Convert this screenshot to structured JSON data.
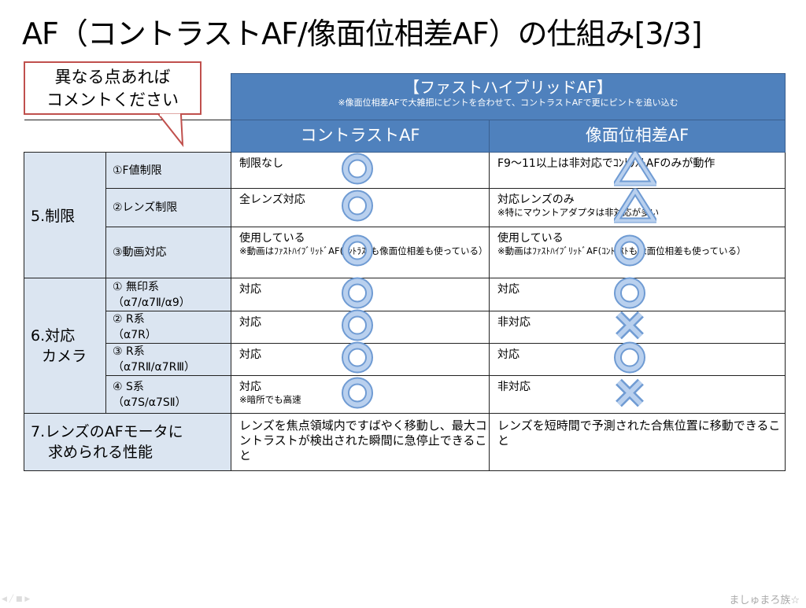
{
  "title": "AF（コントラストAF/像面位相差AF）の仕組み[3/3]",
  "callout": [
    "異なる点あれば",
    "コメントください"
  ],
  "header": {
    "main": "【ファストハイブリッドAF】",
    "note": "※像面位相差AFで大雑把にピントを合わせて、コントラストAFで更にピントを追い込む",
    "col_contrast": "コントラストAF",
    "col_phase": "像面位相差AF"
  },
  "sections": {
    "s5": "5.制限",
    "s6a": "6.対応",
    "s6b": "カメラ",
    "s7a": "7.レンズのAFモータに",
    "s7b": "求められる性能"
  },
  "rows": [
    {
      "label": "①F値制限",
      "contrast": "制限なし",
      "contrast_note": "",
      "contrast_symbol": "circle",
      "phase": "F9～11以上は非対応でｺﾝﾄﾗｽﾄAFのみが動作",
      "phase_note": "",
      "phase_symbol": "triangle"
    },
    {
      "label": "②レンズ制限",
      "contrast": "全レンズ対応",
      "contrast_note": "",
      "contrast_symbol": "circle",
      "phase": "対応レンズのみ",
      "phase_note": "※特にマウントアダプタは非対応が多い",
      "phase_symbol": "triangle"
    },
    {
      "label": "③動画対応",
      "contrast": "使用している",
      "contrast_note": "※動画はﾌｧｽﾄﾊｲﾌﾞﾘｯﾄﾞAF(ｺﾝﾄﾗｽﾄも像面位相差も使っている）",
      "contrast_symbol": "circle",
      "phase": "使用している",
      "phase_note": "※動画はﾌｧｽﾄﾊｲﾌﾞﾘｯﾄﾞAF(ｺﾝﾄﾗｽﾄも像面位相差も使っている）",
      "phase_symbol": "circle"
    },
    {
      "label": "① 無印系",
      "label2": "（α7/α7Ⅱ/α9）",
      "contrast": "対応",
      "contrast_note": "",
      "contrast_symbol": "circle",
      "phase": "対応",
      "phase_note": "",
      "phase_symbol": "circle"
    },
    {
      "label": "② R系",
      "label2": "（α7R）",
      "contrast": "対応",
      "contrast_note": "",
      "contrast_symbol": "circle",
      "phase": "非対応",
      "phase_note": "",
      "phase_symbol": "cross"
    },
    {
      "label": "③ R系",
      "label2": "（α7RⅡ/α7RⅢ）",
      "contrast": "対応",
      "contrast_note": "",
      "contrast_symbol": "circle",
      "phase": "対応",
      "phase_note": "",
      "phase_symbol": "circle"
    },
    {
      "label": "④ S系",
      "label2": "（α7S/α7SⅡ）",
      "contrast": "対応",
      "contrast_note": "※暗所でも高速",
      "contrast_symbol": "circle",
      "phase": "非対応",
      "phase_note": "",
      "phase_symbol": "cross"
    }
  ],
  "row7": {
    "contrast": "レンズを焦点領域内ですばやく移動し、最大コントラストが検出された瞬間に急停止できること",
    "phase": "レンズを短時間で予測された合焦位置に移動できること"
  },
  "footer": "ましゅまろ族☆",
  "colors": {
    "header_blue": "#4f81bd",
    "label_bg": "#dbe5f1",
    "callout_border": "#c0504d",
    "symbol": "#8eb4e3"
  }
}
